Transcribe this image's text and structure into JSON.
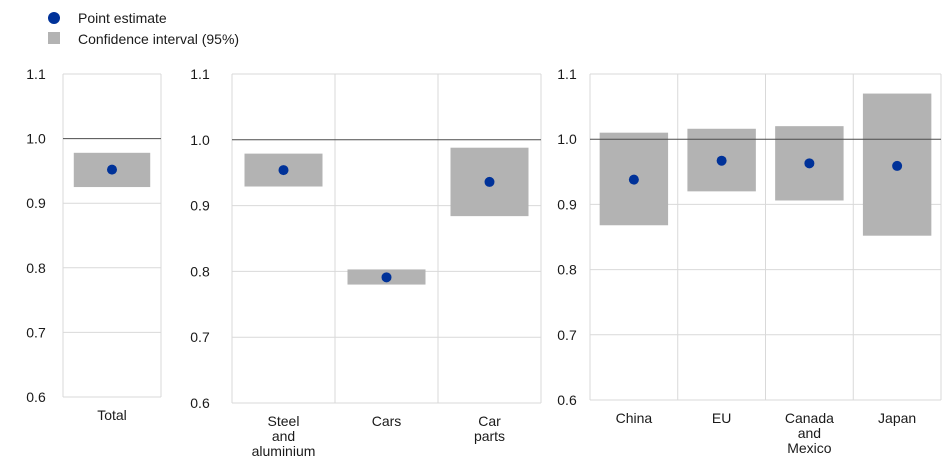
{
  "legend": {
    "point_label": "Point estimate",
    "ci_label": "Confidence interval (95%)",
    "placement": "top-left"
  },
  "colors": {
    "point": "#003299",
    "ci": "#b3b3b3",
    "grid": "#d9d9d9",
    "reference_line": "#4d4d4d",
    "text": "#1a1a1a"
  },
  "chart_data": [
    {
      "type": "scatter",
      "title": "",
      "xlabel": "",
      "ylabel": "",
      "ylim": [
        0.6,
        1.1
      ],
      "yticks": [
        "0.6",
        "0.7",
        "0.8",
        "0.9",
        "1.0",
        "1.1"
      ],
      "reference_y": 1.0,
      "grid": true,
      "categories": [
        [
          "Total"
        ]
      ],
      "series": [
        {
          "name": "Point estimate",
          "values": [
            0.952
          ]
        },
        {
          "name": "Confidence interval (95%)",
          "low": [
            0.925
          ],
          "high": [
            0.978
          ]
        }
      ]
    },
    {
      "type": "scatter",
      "title": "",
      "xlabel": "",
      "ylabel": "",
      "ylim": [
        0.6,
        1.1
      ],
      "yticks": [
        "0.6",
        "0.7",
        "0.8",
        "0.9",
        "1.0",
        "1.1"
      ],
      "reference_y": 1.0,
      "grid": true,
      "categories": [
        [
          "Steel",
          "and",
          "aluminium"
        ],
        [
          "Cars"
        ],
        [
          "Car",
          "parts"
        ]
      ],
      "series": [
        {
          "name": "Point estimate",
          "values": [
            0.954,
            0.791,
            0.936
          ]
        },
        {
          "name": "Confidence interval (95%)",
          "low": [
            0.929,
            0.78,
            0.884
          ],
          "high": [
            0.979,
            0.803,
            0.988
          ]
        }
      ]
    },
    {
      "type": "scatter",
      "title": "",
      "xlabel": "",
      "ylabel": "",
      "ylim": [
        0.6,
        1.1
      ],
      "yticks": [
        "0.6",
        "0.7",
        "0.8",
        "0.9",
        "1.0",
        "1.1"
      ],
      "reference_y": 1.0,
      "grid": true,
      "categories": [
        [
          "China"
        ],
        [
          "EU"
        ],
        [
          "Canada",
          "and",
          "Mexico"
        ],
        [
          "Japan"
        ]
      ],
      "series": [
        {
          "name": "Point estimate",
          "values": [
            0.938,
            0.967,
            0.963,
            0.959
          ]
        },
        {
          "name": "Confidence interval (95%)",
          "low": [
            0.868,
            0.92,
            0.906,
            0.852
          ],
          "high": [
            1.01,
            1.016,
            1.02,
            1.07
          ]
        }
      ]
    }
  ]
}
